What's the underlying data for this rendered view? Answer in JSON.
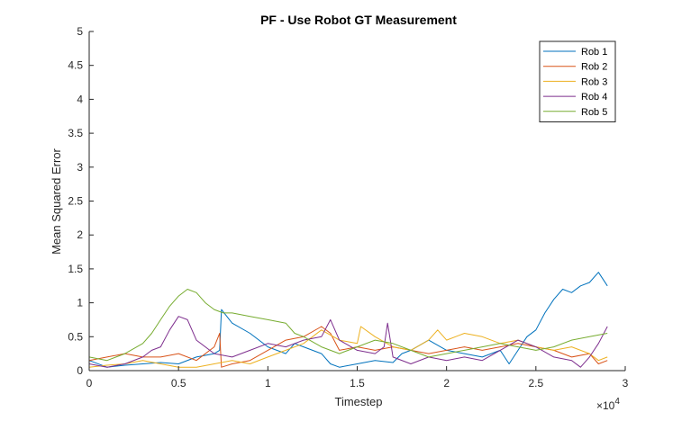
{
  "chart_data": {
    "type": "line",
    "title": "PF - Use Robot GT Measurement",
    "xlabel": "Timestep",
    "ylabel": "Mean Squared Error",
    "x_exponent_label": "×10",
    "x_exponent_power": "4",
    "xlim": [
      0,
      30000
    ],
    "ylim": [
      0,
      5
    ],
    "x_ticks": [
      0,
      5000,
      10000,
      15000,
      20000,
      25000,
      30000
    ],
    "x_tick_labels": [
      "0",
      "0.5",
      "1",
      "1.5",
      "2",
      "2.5",
      "3"
    ],
    "y_ticks": [
      0,
      0.5,
      1,
      1.5,
      2,
      2.5,
      3,
      3.5,
      4,
      4.5,
      5
    ],
    "y_tick_labels": [
      "0",
      "0.5",
      "1",
      "1.5",
      "2",
      "2.5",
      "3",
      "3.5",
      "4",
      "4.5",
      "5"
    ],
    "grid": false,
    "legend_position": "top-right",
    "series": [
      {
        "name": "Rob 1",
        "color": "#0072BD",
        "x": [
          0,
          1000,
          2000,
          3000,
          4000,
          5000,
          6000,
          7000,
          7300,
          7400,
          8000,
          9000,
          10000,
          11000,
          11500,
          12000,
          13000,
          13500,
          14000,
          15000,
          16000,
          17000,
          17500,
          18000,
          19000,
          20000,
          21000,
          22000,
          23000,
          23500,
          24000,
          24500,
          25000,
          25500,
          26000,
          26500,
          27000,
          27500,
          28000,
          28500,
          29000
        ],
        "y": [
          0.15,
          0.05,
          0.08,
          0.1,
          0.12,
          0.1,
          0.2,
          0.25,
          0.3,
          0.9,
          0.7,
          0.55,
          0.35,
          0.25,
          0.4,
          0.35,
          0.25,
          0.1,
          0.05,
          0.1,
          0.15,
          0.12,
          0.25,
          0.3,
          0.45,
          0.3,
          0.25,
          0.2,
          0.3,
          0.1,
          0.3,
          0.5,
          0.6,
          0.85,
          1.05,
          1.2,
          1.15,
          1.25,
          1.3,
          1.45,
          1.25
        ]
      },
      {
        "name": "Rob 2",
        "color": "#D95319",
        "x": [
          0,
          1000,
          2000,
          3000,
          4000,
          5000,
          6000,
          7000,
          7300,
          7400,
          8000,
          9000,
          10000,
          11000,
          12000,
          13000,
          13500,
          14000,
          15000,
          16000,
          17000,
          18000,
          19000,
          20000,
          21000,
          22000,
          23000,
          24000,
          25000,
          26000,
          27000,
          28000,
          28500,
          29000
        ],
        "y": [
          0.15,
          0.2,
          0.25,
          0.2,
          0.2,
          0.25,
          0.15,
          0.35,
          0.55,
          0.05,
          0.1,
          0.15,
          0.3,
          0.45,
          0.5,
          0.65,
          0.55,
          0.3,
          0.35,
          0.3,
          0.35,
          0.3,
          0.25,
          0.3,
          0.35,
          0.3,
          0.35,
          0.4,
          0.35,
          0.3,
          0.2,
          0.25,
          0.1,
          0.15
        ]
      },
      {
        "name": "Rob 3",
        "color": "#EDB120",
        "x": [
          0,
          1000,
          2000,
          3000,
          4000,
          5000,
          6000,
          7000,
          8000,
          9000,
          10000,
          11000,
          12000,
          13000,
          14000,
          15000,
          15200,
          16000,
          17000,
          18000,
          19000,
          19500,
          20000,
          21000,
          22000,
          23000,
          24000,
          25000,
          26000,
          27000,
          28000,
          28500,
          29000
        ],
        "y": [
          0.05,
          0.08,
          0.1,
          0.15,
          0.1,
          0.05,
          0.05,
          0.1,
          0.15,
          0.1,
          0.2,
          0.3,
          0.4,
          0.6,
          0.45,
          0.4,
          0.65,
          0.5,
          0.35,
          0.3,
          0.45,
          0.6,
          0.45,
          0.55,
          0.5,
          0.4,
          0.45,
          0.35,
          0.3,
          0.35,
          0.25,
          0.15,
          0.2
        ]
      },
      {
        "name": "Rob 4",
        "color": "#7E2F8E",
        "x": [
          0,
          1000,
          2000,
          3000,
          3500,
          4000,
          4500,
          5000,
          5500,
          6000,
          7000,
          8000,
          9000,
          10000,
          11000,
          12000,
          13000,
          13500,
          14000,
          15000,
          16000,
          16500,
          16700,
          17000,
          18000,
          19000,
          20000,
          21000,
          22000,
          23000,
          24000,
          25000,
          26000,
          27000,
          27500,
          28000,
          28500,
          29000
        ],
        "y": [
          0.1,
          0.05,
          0.1,
          0.2,
          0.3,
          0.35,
          0.6,
          0.8,
          0.75,
          0.45,
          0.25,
          0.2,
          0.3,
          0.4,
          0.35,
          0.45,
          0.5,
          0.75,
          0.45,
          0.3,
          0.25,
          0.35,
          0.7,
          0.2,
          0.1,
          0.2,
          0.15,
          0.2,
          0.15,
          0.3,
          0.45,
          0.35,
          0.2,
          0.15,
          0.05,
          0.2,
          0.4,
          0.65
        ]
      },
      {
        "name": "Rob 5",
        "color": "#77AC30",
        "x": [
          0,
          1000,
          2000,
          3000,
          3500,
          4000,
          4500,
          5000,
          5500,
          6000,
          6500,
          7000,
          7500,
          8000,
          9000,
          10000,
          11000,
          11500,
          12000,
          13000,
          14000,
          15000,
          16000,
          17000,
          18000,
          19000,
          20000,
          21000,
          22000,
          23000,
          24000,
          25000,
          26000,
          27000,
          28000,
          29000
        ],
        "y": [
          0.2,
          0.15,
          0.25,
          0.4,
          0.55,
          0.75,
          0.95,
          1.1,
          1.2,
          1.15,
          1.0,
          0.9,
          0.85,
          0.85,
          0.8,
          0.75,
          0.7,
          0.55,
          0.5,
          0.35,
          0.25,
          0.35,
          0.45,
          0.4,
          0.3,
          0.2,
          0.25,
          0.3,
          0.35,
          0.4,
          0.35,
          0.3,
          0.35,
          0.45,
          0.5,
          0.55
        ]
      }
    ]
  }
}
